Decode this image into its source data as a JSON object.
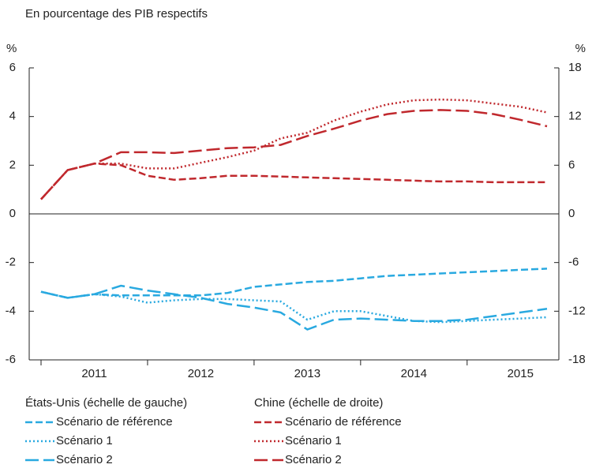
{
  "chart_data": {
    "type": "line",
    "subtitle": "En pourcentage des PIB respectifs",
    "y_unit": "%",
    "y2_unit": "%",
    "categories": [
      null,
      null,
      "2011",
      null,
      null,
      null,
      "2012",
      null,
      null,
      null,
      "2013",
      null,
      null,
      null,
      "2014",
      null,
      null,
      null,
      "2015",
      null
    ],
    "ylim": [
      -6,
      6
    ],
    "yticks": [
      -6,
      -4,
      -2,
      0,
      2,
      4,
      6
    ],
    "y2lim": [
      -18,
      18
    ],
    "y2ticks": [
      -18,
      -12,
      -6,
      0,
      6,
      12,
      18
    ],
    "legend_titles": [
      "États-Unis (échelle de gauche)",
      "Chine (échelle de droite)"
    ],
    "series": [
      {
        "name": "Scénario de référence",
        "color": "#29a9e0",
        "style": "dashed",
        "axis": "y",
        "values": [
          -3.2,
          -3.45,
          -3.3,
          -3.35,
          -3.35,
          -3.35,
          -3.35,
          -3.25,
          -3.0,
          -2.9,
          -2.8,
          -2.75,
          -2.65,
          -2.55,
          -2.5,
          -2.45,
          -2.4,
          -2.35,
          -2.3,
          -2.25
        ]
      },
      {
        "name": "Scénario 1",
        "color": "#29a9e0",
        "style": "dotted",
        "axis": "y",
        "values": [
          -3.2,
          -3.45,
          -3.3,
          -3.4,
          -3.65,
          -3.55,
          -3.5,
          -3.5,
          -3.55,
          -3.6,
          -4.35,
          -4.0,
          -4.0,
          -4.2,
          -4.4,
          -4.45,
          -4.4,
          -4.35,
          -4.3,
          -4.25
        ]
      },
      {
        "name": "Scénario 2",
        "color": "#29a9e0",
        "style": "longdash",
        "axis": "y",
        "values": [
          -3.2,
          -3.45,
          -3.3,
          -2.95,
          -3.15,
          -3.3,
          -3.45,
          -3.7,
          -3.85,
          -4.05,
          -4.75,
          -4.35,
          -4.3,
          -4.35,
          -4.4,
          -4.4,
          -4.35,
          -4.2,
          -4.05,
          -3.9
        ]
      },
      {
        "name": "Scénario de référence",
        "color": "#c0282d",
        "style": "dashed",
        "axis": "y2",
        "values": [
          1.8,
          5.4,
          6.2,
          6.0,
          4.7,
          4.2,
          4.4,
          4.7,
          4.7,
          4.6,
          4.5,
          4.4,
          4.3,
          4.2,
          4.1,
          4.0,
          4.0,
          3.9,
          3.9,
          3.9
        ]
      },
      {
        "name": "Scénario 1",
        "color": "#c0282d",
        "style": "dotted",
        "axis": "y2",
        "values": [
          1.8,
          5.4,
          6.2,
          6.2,
          5.6,
          5.6,
          6.3,
          7.0,
          7.8,
          9.3,
          10.0,
          11.5,
          12.6,
          13.5,
          14.0,
          14.1,
          14.0,
          13.6,
          13.2,
          12.5
        ]
      },
      {
        "name": "Scénario 2",
        "color": "#c0282d",
        "style": "longdash",
        "axis": "y2",
        "values": [
          1.8,
          5.4,
          6.2,
          7.6,
          7.6,
          7.5,
          7.8,
          8.1,
          8.2,
          8.5,
          9.6,
          10.5,
          11.5,
          12.3,
          12.7,
          12.8,
          12.7,
          12.3,
          11.6,
          10.8
        ]
      }
    ]
  }
}
